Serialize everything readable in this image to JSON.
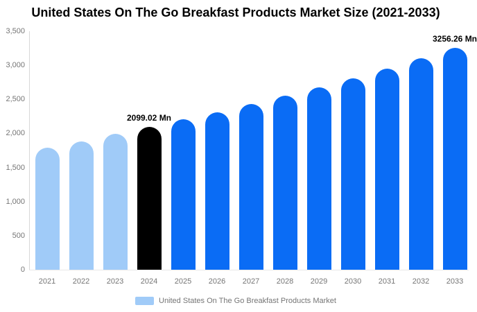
{
  "chart_data": {
    "type": "bar",
    "title": "United States On The Go Breakfast Products Market Size (2021-2033)",
    "value_unit": "Mn",
    "categories": [
      "2021",
      "2022",
      "2023",
      "2024",
      "2025",
      "2026",
      "2027",
      "2028",
      "2029",
      "2030",
      "2031",
      "2032",
      "2033"
    ],
    "values": [
      1790,
      1885,
      1990,
      2099.02,
      2204,
      2314,
      2430,
      2551,
      2679,
      2813,
      2953,
      3101,
      3256.26
    ],
    "bar_colors": [
      "#A0CBF8",
      "#A0CBF8",
      "#A0CBF8",
      "#000000",
      "#0A6CF5",
      "#0A6CF5",
      "#0A6CF5",
      "#0A6CF5",
      "#0A6CF5",
      "#0A6CF5",
      "#0A6CF5",
      "#0A6CF5",
      "#0A6CF5"
    ],
    "ylim": [
      0,
      3500
    ],
    "yticks": [
      {
        "value": 0,
        "label": "0"
      },
      {
        "value": 500,
        "label": "500"
      },
      {
        "value": 1000,
        "label": "1,000"
      },
      {
        "value": 1500,
        "label": "1,500"
      },
      {
        "value": 2000,
        "label": "2,000"
      },
      {
        "value": 2500,
        "label": "2,500"
      },
      {
        "value": 3000,
        "label": "3,000"
      },
      {
        "value": 3500,
        "label": "3,500"
      }
    ],
    "data_labels": [
      {
        "index": 3,
        "text": "2099.02 Mn"
      },
      {
        "index": 12,
        "text": "3256.26 Mn"
      }
    ],
    "grid": false,
    "legend_position": "bottom"
  },
  "legend": {
    "items": [
      {
        "label": "United States On The Go Breakfast Products Market",
        "swatch_color": "#A0CBF8"
      }
    ]
  },
  "colors": {
    "historical_bar": "#A0CBF8",
    "base_year_bar": "#000000",
    "forecast_bar": "#0A6CF5",
    "axis_text": "#757575",
    "title_text": "#000000",
    "axis_line": "#D8D8D8",
    "background": "#FFFFFF"
  }
}
